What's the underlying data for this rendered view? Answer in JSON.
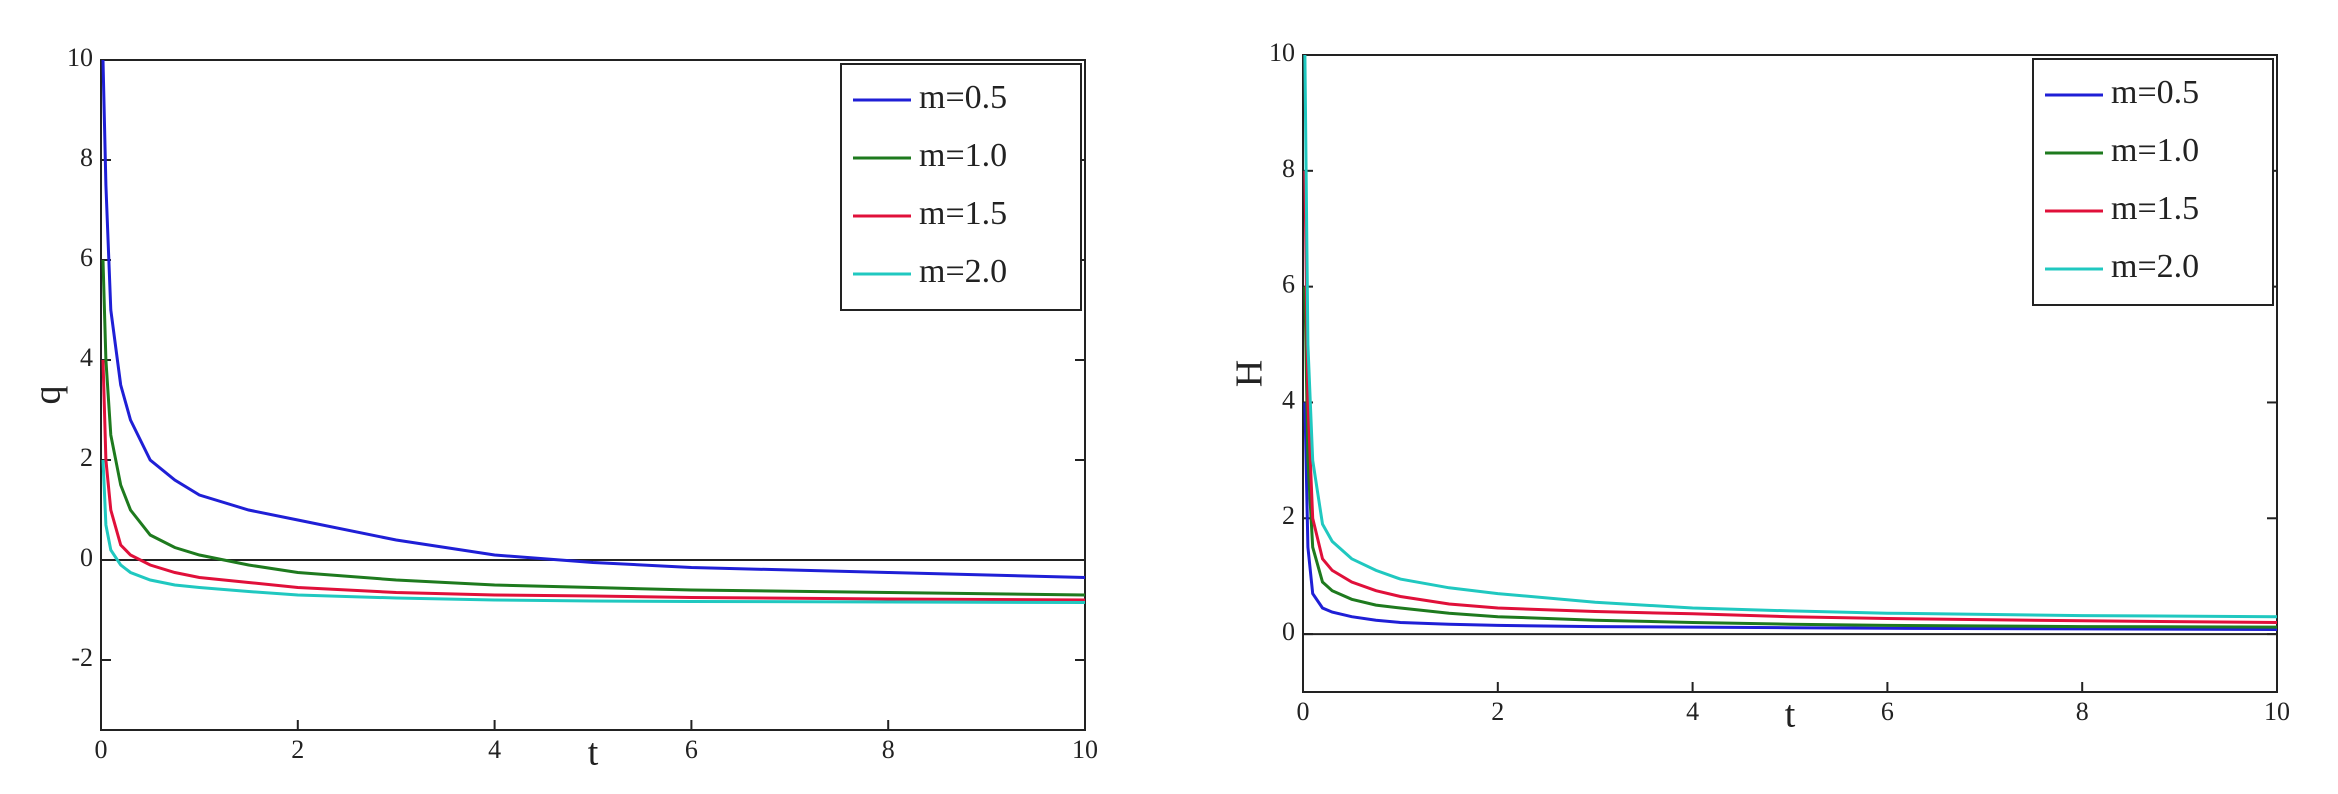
{
  "chart_data": [
    {
      "type": "line",
      "x_label": "t",
      "y_label": "q",
      "x": [
        0.02,
        0.05,
        0.1,
        0.2,
        0.3,
        0.5,
        0.75,
        1,
        1.5,
        2,
        3,
        4,
        5,
        6,
        8,
        10
      ],
      "xlim": [
        0,
        10
      ],
      "ylim": [
        -3.4,
        10
      ],
      "xticks": [
        0,
        2,
        4,
        6,
        8,
        10
      ],
      "yticks": [
        -2,
        0,
        2,
        4,
        6,
        8,
        10
      ],
      "legend": "upper right",
      "series": [
        {
          "name": "m=0.5",
          "color": "#1f1fd6",
          "values": [
            10,
            7.5,
            5,
            3.5,
            2.8,
            2,
            1.6,
            1.3,
            1,
            0.8,
            0.4,
            0.1,
            -0.05,
            -0.15,
            -0.25,
            -0.35
          ]
        },
        {
          "name": "m=1.0",
          "color": "#1e7a1e",
          "values": [
            6,
            4,
            2.5,
            1.5,
            1,
            0.5,
            0.25,
            0.1,
            -0.1,
            -0.25,
            -0.4,
            -0.5,
            -0.55,
            -0.6,
            -0.65,
            -0.7
          ]
        },
        {
          "name": "m=1.5",
          "color": "#e0103a",
          "values": [
            4,
            2,
            1,
            0.3,
            0.1,
            -0.1,
            -0.25,
            -0.35,
            -0.45,
            -0.55,
            -0.65,
            -0.7,
            -0.72,
            -0.75,
            -0.78,
            -0.8
          ]
        },
        {
          "name": "m=2.0",
          "color": "#20c8c0",
          "values": [
            2,
            0.7,
            0.2,
            -0.1,
            -0.25,
            -0.4,
            -0.5,
            -0.55,
            -0.63,
            -0.7,
            -0.76,
            -0.8,
            -0.82,
            -0.83,
            -0.84,
            -0.85
          ]
        }
      ]
    },
    {
      "type": "line",
      "x_label": "t",
      "y_label": "H",
      "x": [
        0.02,
        0.05,
        0.1,
        0.2,
        0.3,
        0.5,
        0.75,
        1,
        1.5,
        2,
        3,
        4,
        5,
        6,
        8,
        10
      ],
      "xlim": [
        0,
        10
      ],
      "ylim": [
        -1,
        10
      ],
      "xticks": [
        0,
        2,
        4,
        6,
        8,
        10
      ],
      "yticks": [
        0,
        2,
        4,
        6,
        8,
        10
      ],
      "legend": "upper right",
      "series": [
        {
          "name": "m=0.5",
          "color": "#1f1fd6",
          "values": [
            4,
            1.5,
            0.7,
            0.45,
            0.38,
            0.3,
            0.24,
            0.2,
            0.17,
            0.15,
            0.13,
            0.12,
            0.11,
            0.1,
            0.09,
            0.08
          ]
        },
        {
          "name": "m=1.0",
          "color": "#1e7a1e",
          "values": [
            6,
            3,
            1.5,
            0.9,
            0.75,
            0.6,
            0.5,
            0.45,
            0.36,
            0.3,
            0.24,
            0.2,
            0.17,
            0.15,
            0.13,
            0.12
          ]
        },
        {
          "name": "m=1.5",
          "color": "#e0103a",
          "values": [
            8,
            4,
            2,
            1.3,
            1.1,
            0.9,
            0.75,
            0.65,
            0.52,
            0.45,
            0.39,
            0.35,
            0.3,
            0.27,
            0.23,
            0.2
          ]
        },
        {
          "name": "m=2.0",
          "color": "#20c8c0",
          "values": [
            10,
            5,
            3,
            1.9,
            1.6,
            1.3,
            1.1,
            0.95,
            0.8,
            0.7,
            0.55,
            0.45,
            0.4,
            0.36,
            0.32,
            0.3
          ]
        }
      ]
    }
  ]
}
